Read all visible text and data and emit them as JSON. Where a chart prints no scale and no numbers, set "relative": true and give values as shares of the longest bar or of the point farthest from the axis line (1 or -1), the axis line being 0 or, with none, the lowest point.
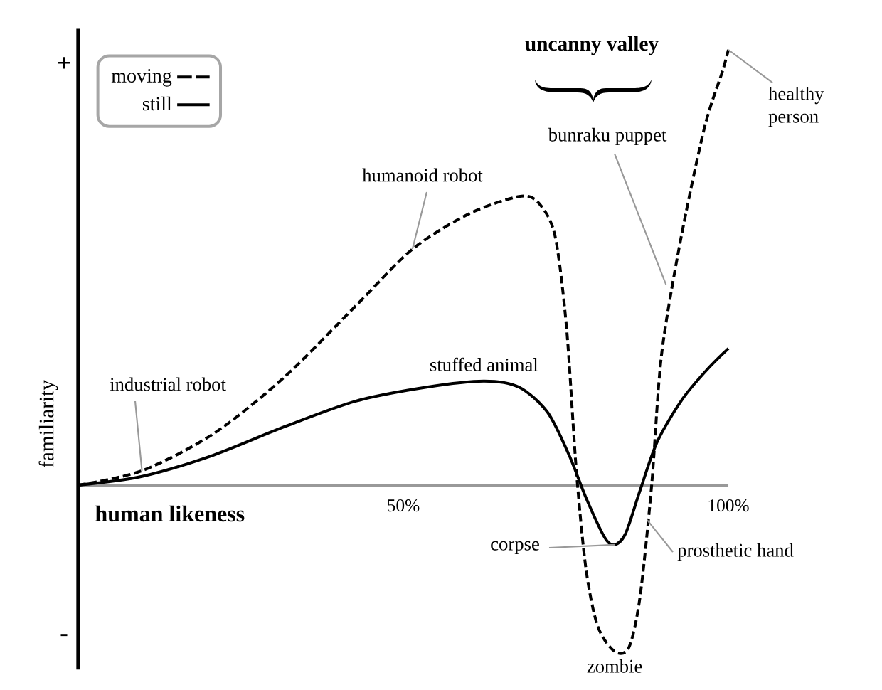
{
  "chart_data": {
    "type": "line",
    "relative": true,
    "xlabel": "human likeness",
    "ylabel": "familiarity",
    "xlim": [
      0,
      100
    ],
    "xticks": [
      {
        "value": 50,
        "label": "50%"
      },
      {
        "value": 100,
        "label": "100%"
      }
    ],
    "legend": "top left",
    "series": [
      {
        "name": "moving",
        "color": "#000000",
        "line_style": "dashed",
        "x": [
          0,
          9.8,
          20.8,
          31.7,
          42.7,
          51.4,
          60.2,
          67.8,
          70.7,
          73.3,
          75.1,
          76.6,
          78.1,
          79.9,
          82.5,
          84.7,
          86.4,
          88.2,
          89.7,
          92.6,
          96.3,
          99.1,
          100
        ],
        "values": [
          0,
          0.033,
          0.118,
          0.248,
          0.412,
          0.542,
          0.624,
          0.663,
          0.65,
          0.575,
          0.363,
          0.036,
          -0.193,
          -0.324,
          -0.382,
          -0.373,
          -0.258,
          0,
          0.297,
          0.559,
          0.82,
          0.951,
          1.0
        ]
      },
      {
        "name": "still",
        "color": "#000000",
        "line_style": "solid",
        "x": [
          0,
          9.8,
          20.8,
          31.7,
          42.7,
          53.6,
          62.4,
          67.8,
          72.2,
          75.5,
          78.1,
          81.0,
          82.5,
          84.2,
          86.4,
          89.1,
          93.0,
          96.7,
          100
        ],
        "values": [
          0,
          0.02,
          0.069,
          0.134,
          0.193,
          0.225,
          0.239,
          0.225,
          0.167,
          0.069,
          -0.029,
          -0.121,
          -0.137,
          -0.111,
          -0.013,
          0.101,
          0.199,
          0.265,
          0.314
        ]
      }
    ],
    "annotations": [
      "+",
      "-",
      "uncanny valley",
      {
        "text": "industrial robot",
        "x": 9.8,
        "y": 0.033
      },
      {
        "text": "humanoid robot",
        "x": 51.4,
        "y": 0.542
      },
      {
        "text": "stuffed animal",
        "x": 62.4,
        "y": 0.239
      },
      {
        "text": "bunraku puppet",
        "x": 90.4,
        "y": 0.461
      },
      {
        "text": "healthy person",
        "x": 100,
        "y": 1.0
      },
      {
        "text": "corpse",
        "x": 82.5,
        "y": -0.137
      },
      {
        "text": "prosthetic hand",
        "x": 87.5,
        "y": -0.08
      },
      {
        "text": "zombie",
        "x": 82.5,
        "y": -0.382
      }
    ]
  }
}
